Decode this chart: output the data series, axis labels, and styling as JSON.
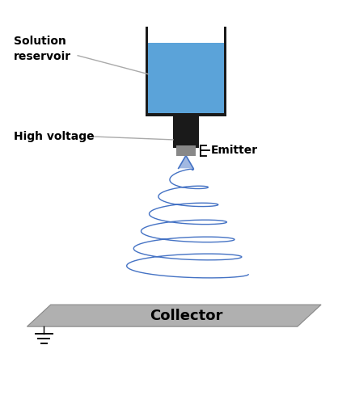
{
  "bg_color": "#ffffff",
  "reservoir_color": "#5ba3d9",
  "reservoir_border": "#1a1a1a",
  "emitter_gray": "#888888",
  "collector_color": "#b0b0b0",
  "collector_edge": "#888888",
  "fiber_color": "#4472c4",
  "text_color": "#000000",
  "label_line_color": "#aaaaaa",
  "figsize": [
    4.18,
    5.0
  ],
  "dpi": 100,
  "xlim": [
    0,
    10
  ],
  "ylim": [
    0,
    12
  ]
}
